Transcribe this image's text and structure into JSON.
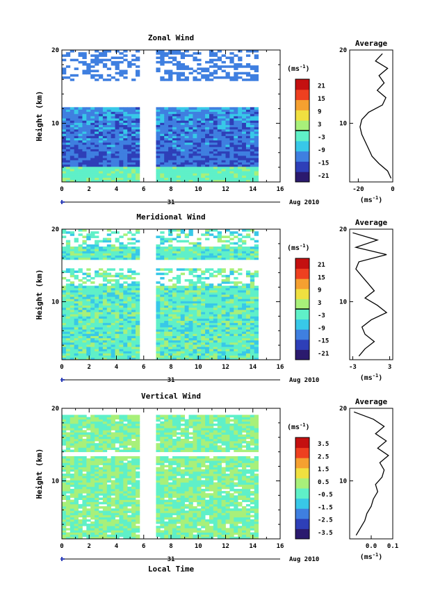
{
  "chart_data": [
    {
      "type": "heatmap",
      "title": "Zonal Wind",
      "ylabel": "Height (km)",
      "xlim": [
        0,
        16
      ],
      "ylim": [
        2,
        20
      ],
      "x_ticks": [
        "0",
        "2",
        "4",
        "6",
        "8",
        "10",
        "12",
        "14",
        "16"
      ],
      "y_ticks": [
        "10",
        "20"
      ],
      "date_day": "31",
      "date_label": "Aug 2010",
      "colorbar_unit": "(ms-1)",
      "colorbar_ticks": [
        "21",
        "15",
        "9",
        "3",
        "-3",
        "-9",
        "-15",
        "-21"
      ],
      "colorbar_range": [
        -24,
        24
      ],
      "colorbar_marker": 0,
      "data_gap": [
        5.5,
        6.6
      ],
      "data_end": 14.4,
      "profile": {
        "title": "Average",
        "xlim": [
          -25,
          0
        ],
        "x_ticks": [
          "-20",
          "0"
        ],
        "xlabel": "(ms-1)",
        "heights": [
          2.5,
          3.5,
          4.5,
          5.5,
          6.5,
          7.5,
          8.5,
          9.5,
          10.5,
          11.5,
          12.5,
          13.5,
          14.5,
          15.5,
          16.5,
          17.5,
          18.5,
          19.5
        ],
        "values": [
          -1,
          -3,
          -8,
          -12,
          -14,
          -16,
          -18,
          -19,
          -18,
          -14,
          -6,
          -4,
          -9,
          -5,
          -8,
          -3,
          -10,
          -6
        ]
      }
    },
    {
      "type": "heatmap",
      "title": "Meridional Wind",
      "ylabel": "Height (km)",
      "xlim": [
        0,
        16
      ],
      "ylim": [
        2,
        20
      ],
      "x_ticks": [
        "0",
        "2",
        "4",
        "6",
        "8",
        "10",
        "12",
        "14",
        "16"
      ],
      "y_ticks": [
        "10",
        "20"
      ],
      "date_day": "31",
      "date_label": "Aug 2010",
      "colorbar_unit": "(ms-1)",
      "colorbar_ticks": [
        "21",
        "15",
        "9",
        "3",
        "-3",
        "-9",
        "-15",
        "-21"
      ],
      "colorbar_range": [
        -24,
        24
      ],
      "colorbar_marker": 0,
      "data_gap": [
        5.5,
        6.6
      ],
      "data_end": 14.4,
      "profile": {
        "title": "Average",
        "xlim": [
          -3.5,
          3.5
        ],
        "x_ticks": [
          "-3",
          "3"
        ],
        "xlabel": "(ms-1)",
        "heights": [
          2.5,
          3.5,
          4.5,
          5.5,
          6.5,
          7.5,
          8.5,
          9.5,
          10.5,
          11.5,
          12.5,
          13.5,
          14.5,
          15.5,
          16.5,
          17.5,
          18.5,
          19.5
        ],
        "values": [
          -2,
          -1,
          0.5,
          -1,
          -1.5,
          0,
          2.5,
          1,
          -1,
          0.5,
          -0.5,
          -1.5,
          -2.5,
          -2,
          2.5,
          -2.5,
          1,
          -3
        ]
      }
    },
    {
      "type": "heatmap",
      "title": "Vertical Wind",
      "ylabel": "Height (km)",
      "xlabel": "Local Time",
      "xlim": [
        0,
        16
      ],
      "ylim": [
        2,
        20
      ],
      "x_ticks": [
        "0",
        "2",
        "4",
        "6",
        "8",
        "10",
        "12",
        "14",
        "16"
      ],
      "y_ticks": [
        "10",
        "20"
      ],
      "date_day": "31",
      "date_label": "Aug 2010",
      "colorbar_unit": "(ms-1)",
      "colorbar_ticks": [
        "3.5",
        "2.5",
        "1.5",
        "0.5",
        "-0.5",
        "-1.5",
        "-2.5",
        "-3.5"
      ],
      "colorbar_range": [
        -4,
        4
      ],
      "data_gap": [
        5.5,
        6.6
      ],
      "data_end": 14.4,
      "profile": {
        "title": "Average",
        "xlim": [
          -0.1,
          0.1
        ],
        "x_ticks": [
          "0.0",
          "0.1"
        ],
        "xlabel": "(ms-1)",
        "heights": [
          2.5,
          3.5,
          4.5,
          5.5,
          6.5,
          7.5,
          8.5,
          9.5,
          10.5,
          11.5,
          12.5,
          13.5,
          14.5,
          15.5,
          16.5,
          17.5,
          18.5,
          19.5
        ],
        "values": [
          -0.07,
          -0.05,
          -0.03,
          -0.02,
          0.0,
          0.01,
          0.03,
          0.02,
          0.05,
          0.06,
          0.04,
          0.08,
          0.03,
          0.07,
          0.02,
          0.06,
          0.01,
          -0.08
        ]
      }
    }
  ]
}
